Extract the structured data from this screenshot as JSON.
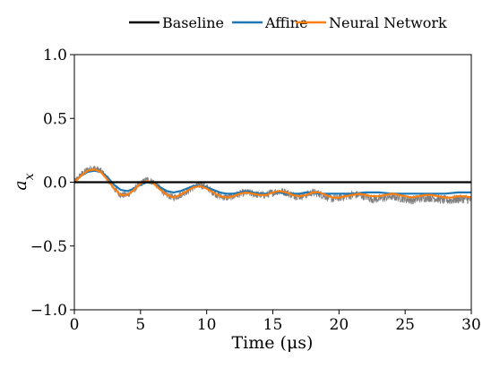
{
  "chart_data": {
    "type": "line",
    "xlabel": "Time (μs)",
    "ylabel": "a_x",
    "ylabel_base": "a",
    "ylabel_sub": "x",
    "xlim": [
      0,
      30
    ],
    "ylim": [
      -1.0,
      1.0
    ],
    "xticks": [
      0,
      5,
      10,
      15,
      20,
      25,
      30
    ],
    "xtick_labels": [
      "0",
      "5",
      "10",
      "15",
      "20",
      "25",
      "30"
    ],
    "yticks": [
      -1.0,
      -0.5,
      0.0,
      0.5,
      1.0
    ],
    "ytick_labels": [
      "−1.0",
      "−0.5",
      "0.0",
      "0.5",
      "1.0"
    ],
    "grid": false,
    "legend_position": "top-right (outside plot, above)",
    "series": [
      {
        "name": "Baseline",
        "color": "#000000",
        "x": [
          0,
          30
        ],
        "y": [
          0.0,
          0.0
        ]
      },
      {
        "name": "Affine",
        "color": "#1f77b4",
        "x": [
          0,
          0.5,
          1,
          1.5,
          2,
          2.5,
          3,
          3.5,
          4,
          4.5,
          5,
          5.5,
          6,
          6.5,
          7,
          7.5,
          8,
          8.5,
          9,
          9.5,
          10,
          10.5,
          11,
          11.5,
          12,
          12.5,
          13,
          13.5,
          14,
          14.5,
          15,
          15.5,
          16,
          16.5,
          17,
          17.5,
          18,
          18.5,
          19,
          19.5,
          20,
          21,
          22,
          23,
          24,
          25,
          26,
          27,
          28,
          29,
          30
        ],
        "y": [
          0.0,
          0.05,
          0.08,
          0.09,
          0.08,
          0.04,
          -0.02,
          -0.06,
          -0.07,
          -0.05,
          -0.02,
          0.0,
          -0.01,
          -0.04,
          -0.07,
          -0.08,
          -0.07,
          -0.05,
          -0.03,
          -0.03,
          -0.04,
          -0.06,
          -0.08,
          -0.09,
          -0.09,
          -0.08,
          -0.07,
          -0.08,
          -0.09,
          -0.09,
          -0.08,
          -0.08,
          -0.09,
          -0.09,
          -0.09,
          -0.08,
          -0.08,
          -0.09,
          -0.09,
          -0.09,
          -0.09,
          -0.09,
          -0.08,
          -0.08,
          -0.09,
          -0.09,
          -0.09,
          -0.09,
          -0.09,
          -0.08,
          -0.08
        ]
      },
      {
        "name": "Neural Network",
        "color": "#ff7f0e",
        "x": [
          0,
          0.5,
          1,
          1.5,
          2,
          2.5,
          3,
          3.5,
          4,
          4.5,
          5,
          5.5,
          6,
          6.5,
          7,
          7.5,
          8,
          8.5,
          9,
          9.5,
          10,
          10.5,
          11,
          11.5,
          12,
          12.5,
          13,
          13.5,
          14,
          14.5,
          15,
          15.5,
          16,
          16.5,
          17,
          17.5,
          18,
          18.5,
          19,
          19.5,
          20,
          20.5,
          21,
          21.5,
          22,
          22.5,
          23,
          23.5,
          24,
          24.5,
          25,
          25.5,
          26,
          26.5,
          27,
          27.5,
          28,
          28.5,
          29,
          29.5,
          30
        ],
        "y": [
          0.0,
          0.05,
          0.09,
          0.1,
          0.08,
          0.02,
          -0.05,
          -0.1,
          -0.1,
          -0.06,
          -0.01,
          0.01,
          -0.01,
          -0.06,
          -0.1,
          -0.12,
          -0.1,
          -0.07,
          -0.04,
          -0.03,
          -0.05,
          -0.08,
          -0.11,
          -0.12,
          -0.11,
          -0.09,
          -0.08,
          -0.09,
          -0.1,
          -0.1,
          -0.08,
          -0.07,
          -0.08,
          -0.1,
          -0.11,
          -0.1,
          -0.08,
          -0.08,
          -0.1,
          -0.12,
          -0.12,
          -0.11,
          -0.1,
          -0.09,
          -0.1,
          -0.11,
          -0.11,
          -0.1,
          -0.09,
          -0.1,
          -0.11,
          -0.12,
          -0.11,
          -0.1,
          -0.1,
          -0.11,
          -0.12,
          -0.12,
          -0.11,
          -0.11,
          -0.12
        ]
      },
      {
        "name": "",
        "color": "#808080",
        "style": "noisy measured signal",
        "x": [
          0,
          0.5,
          1,
          1.5,
          2,
          2.5,
          3,
          3.5,
          4,
          4.5,
          5,
          5.5,
          6,
          6.5,
          7,
          7.5,
          8,
          8.5,
          9,
          9.5,
          10,
          10.5,
          11,
          11.5,
          12,
          12.5,
          13,
          13.5,
          14,
          14.5,
          15,
          15.5,
          16,
          16.5,
          17,
          17.5,
          18,
          18.5,
          19,
          19.5,
          20,
          20.5,
          21,
          21.5,
          22,
          22.5,
          23,
          23.5,
          24,
          24.5,
          25,
          25.5,
          26,
          26.5,
          27,
          27.5,
          28,
          28.5,
          29,
          29.5,
          30
        ],
        "y": [
          0.0,
          0.06,
          0.1,
          0.11,
          0.09,
          0.03,
          -0.05,
          -0.1,
          -0.1,
          -0.06,
          -0.01,
          0.02,
          0.0,
          -0.05,
          -0.1,
          -0.12,
          -0.1,
          -0.07,
          -0.04,
          -0.02,
          -0.04,
          -0.08,
          -0.11,
          -0.12,
          -0.11,
          -0.09,
          -0.08,
          -0.09,
          -0.1,
          -0.1,
          -0.08,
          -0.07,
          -0.08,
          -0.1,
          -0.11,
          -0.1,
          -0.08,
          -0.09,
          -0.11,
          -0.13,
          -0.12,
          -0.11,
          -0.1,
          -0.1,
          -0.11,
          -0.13,
          -0.13,
          -0.12,
          -0.11,
          -0.12,
          -0.13,
          -0.14,
          -0.13,
          -0.12,
          -0.12,
          -0.13,
          -0.14,
          -0.14,
          -0.13,
          -0.13,
          -0.14
        ]
      }
    ]
  }
}
